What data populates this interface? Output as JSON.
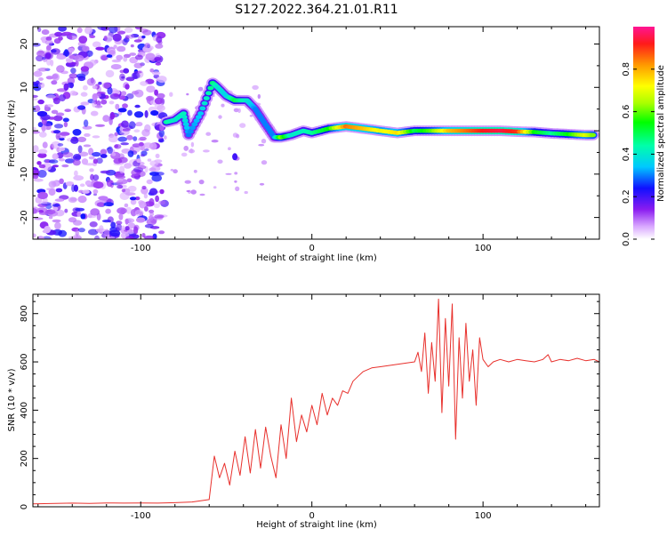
{
  "page_title": "S127.2022.364.21.01.R11",
  "chart_data": [
    {
      "type": "heatmap",
      "xlabel": "Height of straight line (km)",
      "ylabel": "Frequency (Hz)",
      "xlim": [
        -163,
        168
      ],
      "ylim": [
        -25,
        24
      ],
      "xticks": [
        -100,
        0,
        100
      ],
      "yticks": [
        -20,
        -10,
        0,
        10,
        20
      ],
      "grid": false,
      "colorbar": {
        "label": "Normalized spectral amplitude",
        "range": [
          0,
          1
        ],
        "ticks": [
          0.0,
          0.2,
          0.4,
          0.6,
          0.8
        ],
        "tick_labels": [
          "0.0",
          "0.2",
          "0.4",
          "0.6",
          "0.8"
        ]
      },
      "noise_region": {
        "x": [
          -163,
          -86
        ],
        "amplitude": [
          0.05,
          0.25
        ]
      },
      "ridge": [
        {
          "x": -85,
          "f": 2,
          "amp": 0.45
        },
        {
          "x": -80,
          "f": 2.5,
          "amp": 0.4
        },
        {
          "x": -75,
          "f": 4,
          "amp": 0.42
        },
        {
          "x": -72,
          "f": -1,
          "amp": 0.3
        },
        {
          "x": -65,
          "f": 4,
          "amp": 0.35
        },
        {
          "x": -58,
          "f": 11,
          "amp": 0.48
        },
        {
          "x": -55,
          "f": 10,
          "amp": 0.4
        },
        {
          "x": -50,
          "f": 8,
          "amp": 0.36
        },
        {
          "x": -45,
          "f": 7,
          "amp": 0.5
        },
        {
          "x": -38,
          "f": 7,
          "amp": 0.4
        },
        {
          "x": -33,
          "f": 5,
          "amp": 0.3
        },
        {
          "x": -28,
          "f": 2,
          "amp": 0.3
        },
        {
          "x": -22,
          "f": -1.5,
          "amp": 0.3
        },
        {
          "x": -18,
          "f": -1.5,
          "amp": 0.62
        },
        {
          "x": -12,
          "f": -1,
          "amp": 0.4
        },
        {
          "x": -5,
          "f": 0,
          "amp": 0.42
        },
        {
          "x": 0,
          "f": -0.5,
          "amp": 0.45
        },
        {
          "x": 10,
          "f": 0.5,
          "amp": 0.55
        },
        {
          "x": 20,
          "f": 1,
          "amp": 0.85
        },
        {
          "x": 30,
          "f": 0.5,
          "amp": 0.78
        },
        {
          "x": 40,
          "f": 0,
          "amp": 0.7
        },
        {
          "x": 50,
          "f": -0.5,
          "amp": 0.75
        },
        {
          "x": 60,
          "f": 0,
          "amp": 0.5
        },
        {
          "x": 70,
          "f": 0,
          "amp": 0.6
        },
        {
          "x": 80,
          "f": 0,
          "amp": 0.78
        },
        {
          "x": 90,
          "f": 0,
          "amp": 0.85
        },
        {
          "x": 100,
          "f": 0,
          "amp": 0.92
        },
        {
          "x": 110,
          "f": 0,
          "amp": 0.95
        },
        {
          "x": 120,
          "f": -0.2,
          "amp": 0.9
        },
        {
          "x": 130,
          "f": -0.3,
          "amp": 0.55
        },
        {
          "x": 140,
          "f": -0.6,
          "amp": 0.45
        },
        {
          "x": 150,
          "f": -0.8,
          "amp": 0.55
        },
        {
          "x": 160,
          "f": -1,
          "amp": 0.7
        },
        {
          "x": 165,
          "f": -1,
          "amp": 0.6
        }
      ]
    },
    {
      "type": "line",
      "xlabel": "Height of straight line (km)",
      "ylabel": "SNR (10 * v/v)",
      "xlim": [
        -163,
        168
      ],
      "ylim": [
        0,
        880
      ],
      "xticks": [
        -100,
        0,
        100
      ],
      "yticks": [
        0,
        200,
        400,
        600,
        800
      ],
      "grid": false,
      "series": [
        {
          "color": "#e8302c",
          "x": [
            -163,
            -150,
            -140,
            -130,
            -120,
            -110,
            -100,
            -90,
            -80,
            -70,
            -60,
            -57,
            -54,
            -51,
            -48,
            -45,
            -42,
            -39,
            -36,
            -33,
            -30,
            -27,
            -24,
            -21,
            -18,
            -15,
            -12,
            -9,
            -6,
            -3,
            0,
            3,
            6,
            9,
            12,
            15,
            18,
            21,
            24,
            27,
            30,
            35,
            40,
            45,
            50,
            55,
            60,
            62,
            64,
            66,
            68,
            70,
            72,
            74,
            76,
            78,
            80,
            82,
            84,
            86,
            88,
            90,
            92,
            94,
            96,
            98,
            100,
            103,
            106,
            110,
            115,
            120,
            125,
            130,
            135,
            138,
            140,
            145,
            150,
            155,
            160,
            165,
            168
          ],
          "y": [
            12,
            14,
            15,
            14,
            16,
            15,
            16,
            15,
            17,
            20,
            30,
            210,
            120,
            180,
            90,
            230,
            130,
            290,
            140,
            320,
            160,
            330,
            210,
            120,
            340,
            200,
            450,
            270,
            380,
            310,
            420,
            340,
            470,
            380,
            450,
            420,
            480,
            470,
            520,
            540,
            560,
            575,
            580,
            585,
            590,
            595,
            600,
            640,
            560,
            720,
            470,
            680,
            520,
            860,
            390,
            780,
            500,
            840,
            280,
            700,
            450,
            760,
            520,
            650,
            420,
            700,
            610,
            580,
            600,
            610,
            600,
            610,
            605,
            600,
            610,
            630,
            600,
            610,
            605,
            615,
            605,
            610,
            600
          ]
        }
      ]
    }
  ]
}
